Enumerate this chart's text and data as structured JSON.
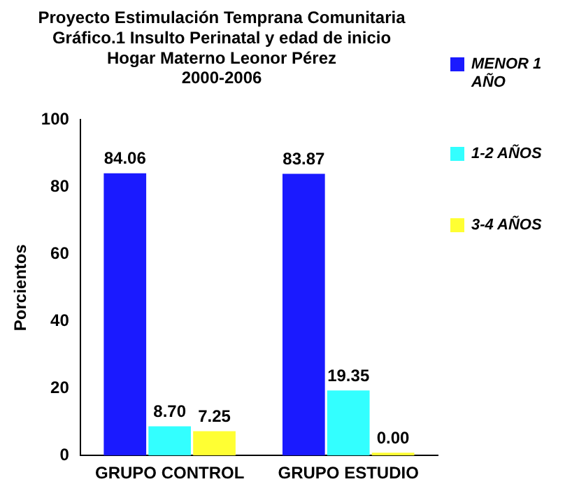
{
  "chart_data": {
    "type": "bar",
    "title": "Proyecto Estimulación Temprana Comunitaria\nGráfico.1 Insulto Perinatal y edad de inicio\nHogar Materno Leonor Pérez\n2000-2006",
    "ylabel": "Porcientos",
    "categories": [
      "GRUPO CONTROL",
      "GRUPO ESTUDIO"
    ],
    "series": [
      {
        "name": "MENOR 1 AÑO",
        "color": "#1a1aff",
        "values": [
          84.06,
          83.87
        ],
        "value_labels": [
          "84.06",
          "83.87"
        ]
      },
      {
        "name": "1-2 AÑOS",
        "color": "#33ffff",
        "values": [
          8.7,
          19.35
        ],
        "value_labels": [
          "8.70",
          "19.35"
        ]
      },
      {
        "name": "3-4 AÑOS",
        "color": "#ffff33",
        "values": [
          7.25,
          0.0
        ],
        "value_labels": [
          "7.25",
          "0.00"
        ]
      }
    ],
    "ylim": [
      0,
      100
    ],
    "yticks": [
      0,
      20,
      40,
      60,
      80,
      100
    ],
    "grid": false,
    "legend": "right"
  }
}
